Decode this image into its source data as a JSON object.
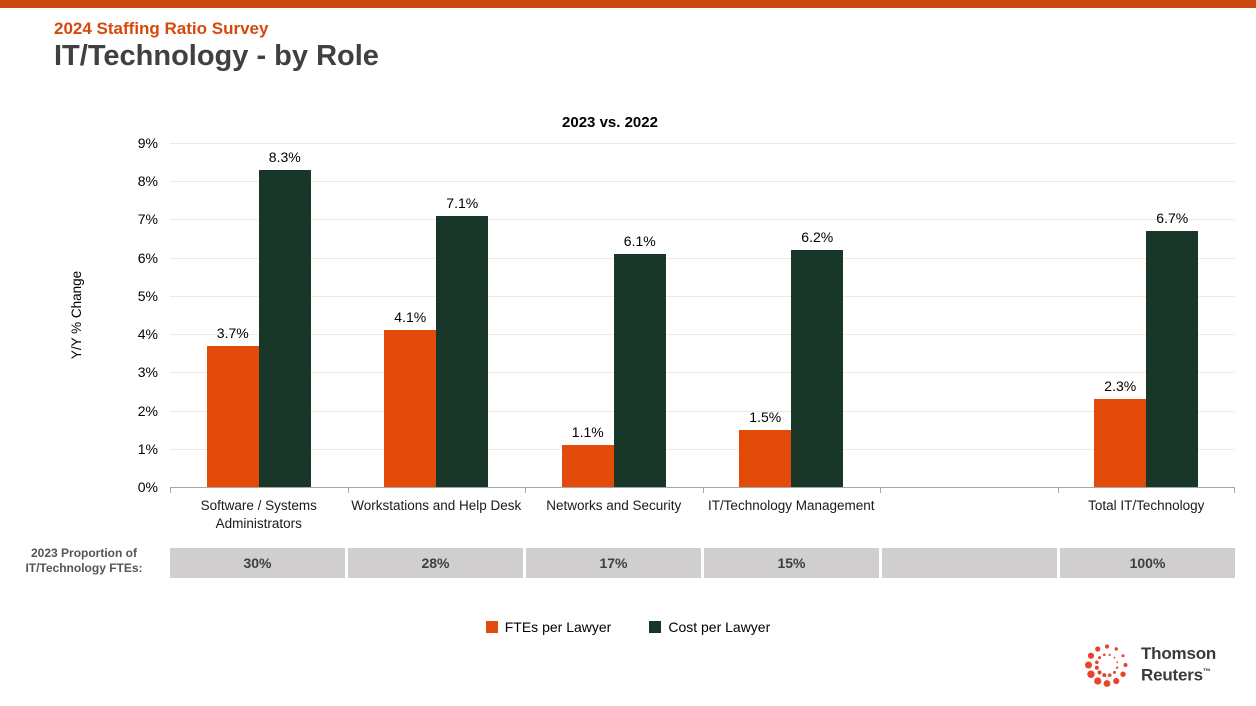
{
  "page": {
    "eyebrow": "2024 Staffing Ratio Survey",
    "title": "IT/Technology - by Role"
  },
  "chart_data": {
    "type": "bar",
    "title": "2023 vs. 2022",
    "xlabel": "",
    "ylabel": "Y/Y % Change",
    "ylim": [
      0,
      9
    ],
    "yticks": [
      "0%",
      "1%",
      "2%",
      "3%",
      "4%",
      "5%",
      "6%",
      "7%",
      "8%",
      "9%"
    ],
    "grid": true,
    "legend_position": "bottom",
    "categories": [
      "Software / Systems Administrators",
      "Workstations and Help Desk",
      "Networks and Security",
      "IT/Technology Management",
      "",
      "Total IT/Technology"
    ],
    "series": [
      {
        "name": "FTEs per Lawyer",
        "color": "#E24B0A",
        "values": [
          3.7,
          4.1,
          1.1,
          1.5,
          null,
          2.3
        ]
      },
      {
        "name": "Cost per Lawyer",
        "color": "#183728",
        "values": [
          8.3,
          7.1,
          6.1,
          6.2,
          null,
          6.7
        ]
      }
    ],
    "data_label_suffix": "%"
  },
  "proportion_row": {
    "label": "2023 Proportion of IT/Technology FTEs:",
    "values": [
      "30%",
      "28%",
      "17%",
      "15%",
      "",
      "100%"
    ]
  },
  "legend": {
    "items": [
      {
        "label": "FTEs per Lawyer",
        "color": "#E24B0A"
      },
      {
        "label": "Cost per Lawyer",
        "color": "#183728"
      }
    ]
  },
  "branding": {
    "logo_line1": "Thomson",
    "logo_line2": "Reuters",
    "trademark": "™",
    "logo_color": "#E8432B"
  },
  "colors": {
    "accent_bar": "#C84A0E",
    "eyebrow_text": "#D6490A",
    "heading_text": "#404040",
    "gridline": "#F6E8D6",
    "axis_line": "#A6A6A6",
    "proportion_box": "#D0CECE"
  }
}
